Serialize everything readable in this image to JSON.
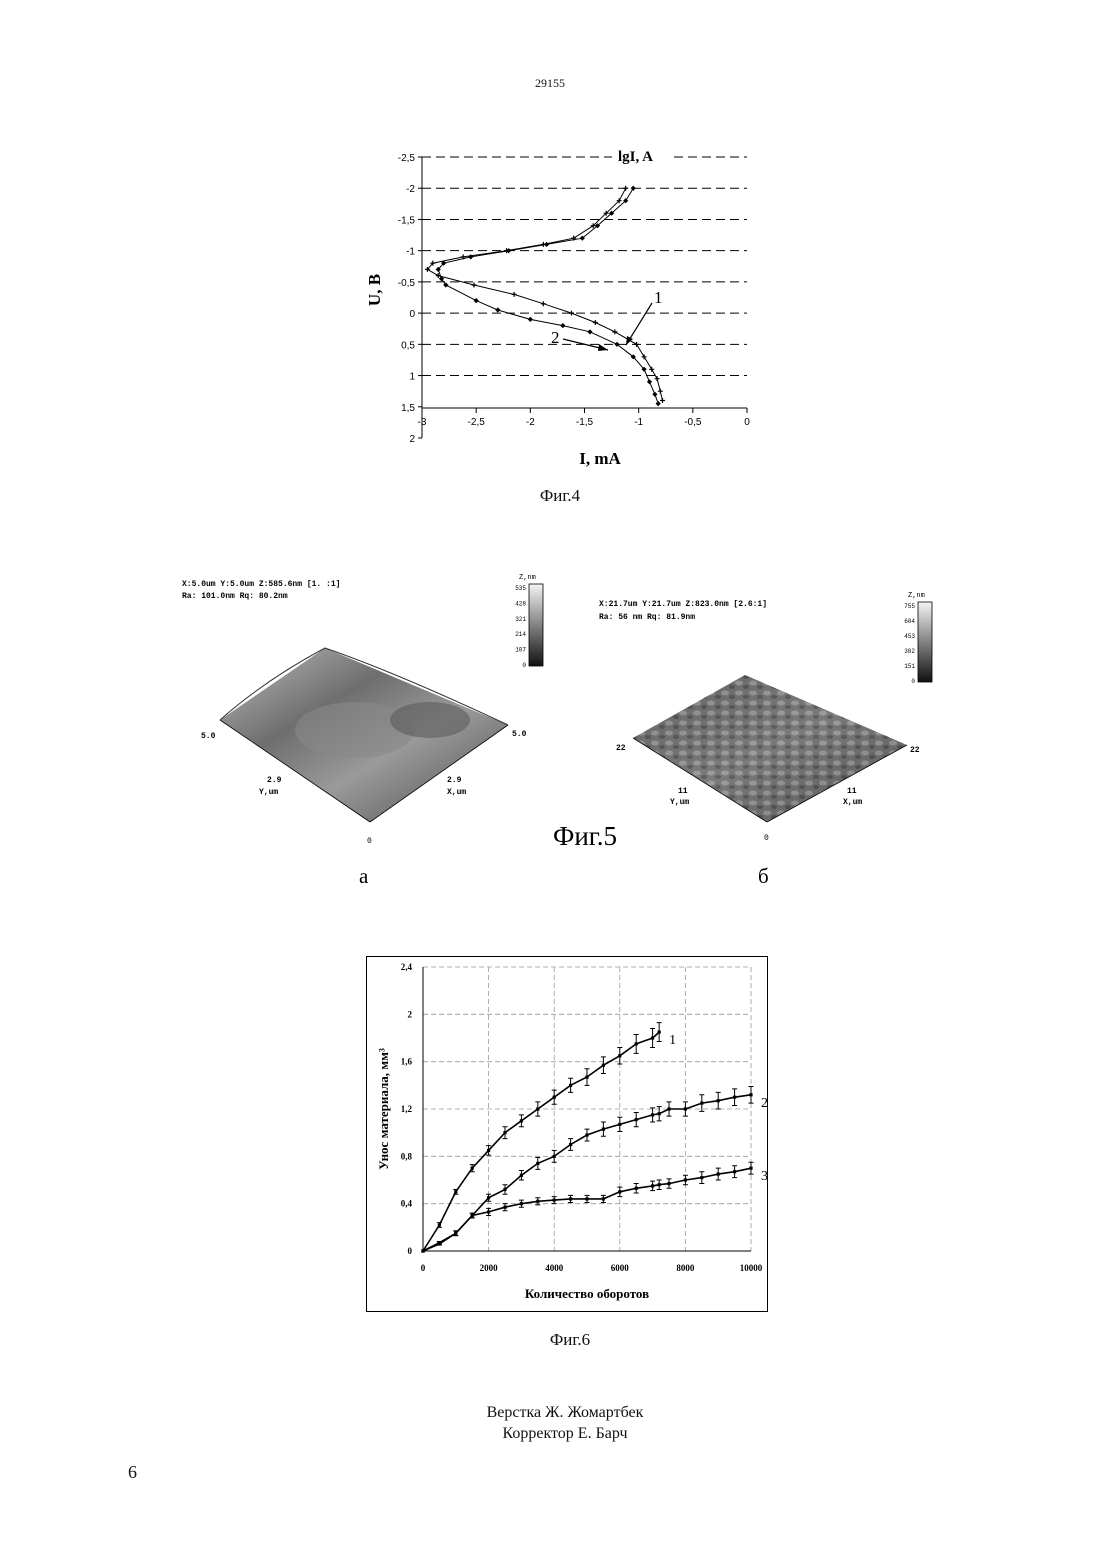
{
  "page": {
    "number_top": "29155",
    "number_bottom": "6",
    "credits": [
      "Верстка Ж. Жомартбек",
      "Корректор Е. Барч"
    ]
  },
  "figures": {
    "fig4": {
      "caption": "Фиг.4",
      "legend_label": "lgI, A",
      "curve_labels": [
        "1",
        "2"
      ]
    },
    "fig5": {
      "caption": "Фиг.5",
      "a": {
        "label": "а",
        "header1": "X:5.0um  Y:5.0um  Z:585.6nm [1. :1]",
        "header2": "Ra: 101.0nm  Rq: 80.2nm",
        "scale_title": "Z,nm",
        "scale_ticks": [
          "535",
          "428",
          "321",
          "214",
          "107",
          "0"
        ],
        "axis_left": "5.0",
        "axis_right": "5.0",
        "mid_y": "2.9",
        "mid_x": "2.9",
        "y_label": "Y,um",
        "x_label": "X,um",
        "origin": "0"
      },
      "b": {
        "label": "б",
        "header1": "X:21.7um  Y:21.7um  Z:823.0nm [2.6:1]",
        "header2": "Ra: 56 nm  Rq: 81.9nm",
        "scale_title": "Z,nm",
        "scale_ticks": [
          "755",
          "604",
          "453",
          "302",
          "151",
          "0"
        ],
        "axis_left": "22",
        "axis_right": "22",
        "mid_y": "11",
        "mid_x": "11",
        "y_label": "Y,um",
        "x_label": "X,um",
        "origin": "0"
      }
    },
    "fig6": {
      "caption": "Фиг.6"
    }
  },
  "chart_data": [
    {
      "id": "fig4",
      "type": "line",
      "xlabel": "I, mA",
      "ylabel": "U, B",
      "xlim": [
        -3,
        0
      ],
      "ylim": [
        -2.5,
        2
      ],
      "y_inverted": true,
      "xticks": [
        "-3",
        "-2,5",
        "-2",
        "-1,5",
        "-1",
        "-0,5",
        "0"
      ],
      "yticks": [
        "-2,5",
        "-2",
        "-1,5",
        "-1",
        "-0,5",
        "0",
        "0,5",
        "1",
        "1,5",
        "2"
      ],
      "grid": "horizontal dashed",
      "series": [
        {
          "name": "1",
          "marker": "plus",
          "x": [
            -1.12,
            -1.18,
            -1.3,
            -1.42,
            -1.6,
            -1.88,
            -2.22,
            -2.62,
            -2.9,
            -2.95,
            -2.85,
            -2.52,
            -2.15,
            -1.88,
            -1.62,
            -1.4,
            -1.22,
            -1.02,
            -0.95,
            -0.88,
            -0.83,
            -0.8,
            -0.78
          ],
          "y": [
            -2,
            -1.8,
            -1.6,
            -1.4,
            -1.2,
            -1.1,
            -1.0,
            -0.9,
            -0.8,
            -0.7,
            -0.6,
            -0.45,
            -0.3,
            -0.15,
            0,
            0.15,
            0.3,
            0.5,
            0.7,
            0.9,
            1.05,
            1.25,
            1.4
          ]
        },
        {
          "name": "2",
          "marker": "diamond",
          "x": [
            -1.05,
            -1.12,
            -1.25,
            -1.38,
            -1.52,
            -1.85,
            -2.2,
            -2.55,
            -2.8,
            -2.85,
            -2.82,
            -2.78,
            -2.5,
            -2.3,
            -2.0,
            -1.7,
            -1.45,
            -1.2,
            -1.05,
            -0.95,
            -0.9,
            -0.85,
            -0.82
          ],
          "y": [
            -2,
            -1.8,
            -1.6,
            -1.4,
            -1.2,
            -1.1,
            -1.0,
            -0.9,
            -0.8,
            -0.7,
            -0.55,
            -0.45,
            -0.2,
            -0.05,
            0.1,
            0.2,
            0.3,
            0.5,
            0.7,
            0.9,
            1.1,
            1.3,
            1.45
          ]
        }
      ]
    },
    {
      "id": "fig6",
      "type": "line",
      "xlabel": "Количество оборотов",
      "ylabel": "Унос материала, мм³",
      "xlim": [
        0,
        10000
      ],
      "ylim": [
        0,
        2.4
      ],
      "xticks": [
        "0",
        "2000",
        "4000",
        "6000",
        "8000",
        "10000"
      ],
      "yticks": [
        "0",
        "0,4",
        "0,8",
        "1,2",
        "1,6",
        "2",
        "2,4"
      ],
      "grid": "dashed",
      "error_bars": true,
      "series": [
        {
          "name": "1",
          "x": [
            0,
            500,
            1000,
            1500,
            2000,
            2500,
            3000,
            3500,
            4000,
            4500,
            5000,
            5500,
            6000,
            6500,
            7000,
            7200
          ],
          "y": [
            0,
            0.22,
            0.5,
            0.7,
            0.85,
            1.0,
            1.1,
            1.2,
            1.3,
            1.4,
            1.47,
            1.57,
            1.65,
            1.75,
            1.8,
            1.85
          ],
          "err": [
            0,
            0.02,
            0.02,
            0.03,
            0.04,
            0.05,
            0.05,
            0.06,
            0.06,
            0.06,
            0.07,
            0.07,
            0.07,
            0.08,
            0.08,
            0.08
          ]
        },
        {
          "name": "2",
          "x": [
            0,
            500,
            1000,
            1500,
            2000,
            2500,
            3000,
            3500,
            4000,
            4500,
            5000,
            5500,
            6000,
            6500,
            7000,
            7200,
            7500,
            8000,
            8500,
            9000,
            9500,
            10000
          ],
          "y": [
            0,
            0.07,
            0.15,
            0.3,
            0.45,
            0.52,
            0.64,
            0.74,
            0.8,
            0.9,
            0.98,
            1.03,
            1.07,
            1.11,
            1.15,
            1.16,
            1.2,
            1.2,
            1.25,
            1.27,
            1.3,
            1.32
          ],
          "err": [
            0,
            0.01,
            0.02,
            0.02,
            0.03,
            0.04,
            0.04,
            0.05,
            0.05,
            0.05,
            0.05,
            0.06,
            0.06,
            0.06,
            0.06,
            0.06,
            0.06,
            0.06,
            0.07,
            0.07,
            0.07,
            0.07
          ]
        },
        {
          "name": "3",
          "x": [
            0,
            500,
            1000,
            1500,
            2000,
            2500,
            3000,
            3500,
            4000,
            4500,
            5000,
            5500,
            6000,
            6500,
            7000,
            7200,
            7500,
            8000,
            8500,
            9000,
            9500,
            10000
          ],
          "y": [
            0,
            0.06,
            0.15,
            0.3,
            0.33,
            0.37,
            0.4,
            0.42,
            0.43,
            0.44,
            0.44,
            0.44,
            0.5,
            0.53,
            0.55,
            0.56,
            0.57,
            0.6,
            0.62,
            0.65,
            0.67,
            0.7
          ],
          "err": [
            0,
            0.01,
            0.02,
            0.02,
            0.03,
            0.03,
            0.03,
            0.03,
            0.03,
            0.03,
            0.03,
            0.03,
            0.04,
            0.04,
            0.04,
            0.04,
            0.04,
            0.04,
            0.05,
            0.05,
            0.05,
            0.05
          ]
        }
      ]
    }
  ]
}
